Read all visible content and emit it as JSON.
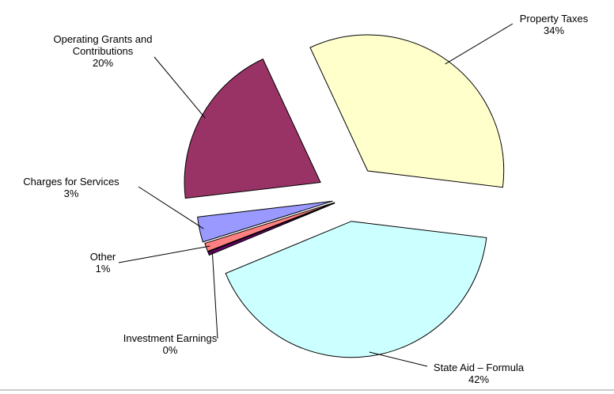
{
  "chart_data": {
    "type": "pie",
    "categories": [
      "Property Taxes",
      "State Aid – Formula",
      "Investment Earnings",
      "Other",
      "Charges for Services",
      "Operating Grants and Contributions"
    ],
    "values": [
      34,
      42,
      0.4,
      1,
      3,
      20
    ],
    "value_labels": [
      "34%",
      "42%",
      "0%",
      "1%",
      "3%",
      "20%"
    ],
    "colors": [
      "#FFFFCC",
      "#CCFFFF",
      "#660066",
      "#FF8080",
      "#9999FF",
      "#993366"
    ]
  }
}
